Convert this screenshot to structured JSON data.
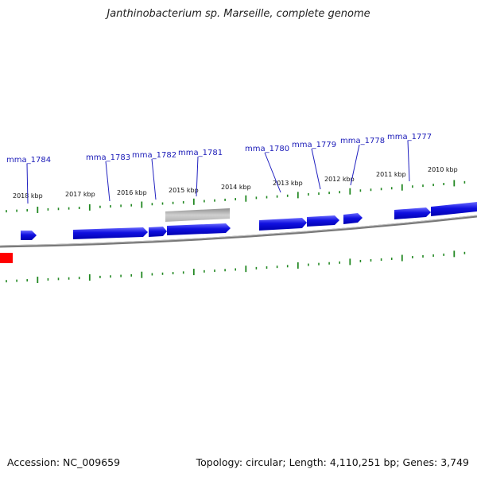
{
  "title": "Janthinobacterium sp. Marseille, complete genome",
  "footer": {
    "accession": "Accession: NC_009659",
    "stats": "Topology: circular; Length: 4,110,251 bp; Genes: 3,749"
  },
  "colors": {
    "gene": "#1010e0",
    "gene_highlight": "#6a6aff",
    "rna": "#a0a0a0",
    "marker": "#ff0000",
    "tick": "#228822",
    "label_line": "#2020c0",
    "backbone": "#777777"
  },
  "kbp_labels": [
    "2018 kbp",
    "2017 kbp",
    "2016 kbp",
    "2015 kbp",
    "2014 kbp",
    "2013 kbp",
    "2012 kbp",
    "2011 kbp",
    "2010 kbp"
  ],
  "gene_labels": [
    "mma_1784",
    "mma_1783",
    "mma_1782",
    "mma_1781",
    "mma_1780",
    "mma_1779",
    "mma_1778",
    "mma_1777"
  ]
}
